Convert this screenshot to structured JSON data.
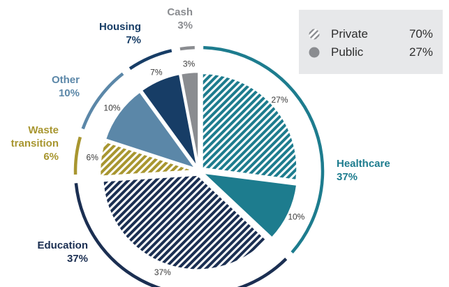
{
  "legend": [
    {
      "name": "Private",
      "value": "70%",
      "style": "hatched"
    },
    {
      "name": "Public",
      "value": "27%",
      "style": "solid"
    }
  ],
  "chart_data": {
    "type": "pie",
    "categories": [
      {
        "name": "Healthcare",
        "value": 37,
        "label": "37%",
        "color": "#1d7c8e",
        "slices": [
          {
            "value": 27,
            "label": "27%",
            "style": "hatched"
          },
          {
            "value": 10,
            "label": "10%",
            "style": "solid"
          }
        ]
      },
      {
        "name": "Education",
        "value": 37,
        "label": "37%",
        "color": "#1b2f52",
        "slices": [
          {
            "value": 37,
            "label": "37%",
            "style": "hatched"
          }
        ]
      },
      {
        "name": "Waste transition",
        "value": 6,
        "label": "6%",
        "color": "#a89630",
        "slices": [
          {
            "value": 6,
            "label": "6%",
            "style": "hatched"
          }
        ]
      },
      {
        "name": "Other",
        "value": 10,
        "label": "10%",
        "color": "#5b87a8",
        "slices": [
          {
            "value": 10,
            "label": "10%",
            "style": "solid"
          }
        ]
      },
      {
        "name": "Housing",
        "value": 7,
        "label": "7%",
        "color": "#173d66",
        "slices": [
          {
            "value": 7,
            "label": "7%",
            "style": "solid"
          }
        ]
      },
      {
        "name": "Cash",
        "value": 3,
        "label": "3%",
        "color": "#8a8c90",
        "slices": [
          {
            "value": 3,
            "label": "3%",
            "style": "solid"
          }
        ]
      }
    ]
  }
}
